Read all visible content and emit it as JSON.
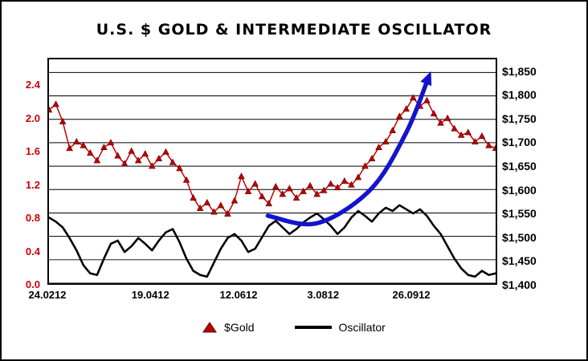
{
  "chart_data": {
    "type": "line",
    "title": "U.S. $ GOLD & INTERMEDIATE OSCILLATOR",
    "grid": "horizontal",
    "legend_position": "bottom",
    "x_ticks": [
      {
        "label": "24.0212",
        "pos": 0.0
      },
      {
        "label": "19.0412",
        "pos": 0.229
      },
      {
        "label": "12.0612",
        "pos": 0.425
      },
      {
        "label": "3.0812",
        "pos": 0.613
      },
      {
        "label": "26.0912",
        "pos": 0.809
      }
    ],
    "left_axis": {
      "color": "#cc0000",
      "tick_labels": [
        "2.4",
        "2.0",
        "1.6",
        "1.2",
        "0.8",
        "0.4",
        "0.0"
      ],
      "tick_values": [
        2.4,
        2.0,
        1.6,
        1.2,
        0.8,
        0.4,
        0.0
      ],
      "plot_max": 2.728
    },
    "right_axis": {
      "color": "#000000",
      "tick_labels": [
        "$1,850",
        "$1,800",
        "$1,750",
        "$1,700",
        "$1,650",
        "$1,600",
        "$1,550",
        "$1,500",
        "$1,450",
        "$1,400"
      ],
      "tick_values": [
        1850,
        1800,
        1750,
        1700,
        1650,
        1600,
        1550,
        1500,
        1450,
        1400
      ],
      "plot_range": [
        1400,
        1878
      ]
    },
    "series": [
      {
        "name": "$Gold",
        "axis": "right",
        "color": "#c00000",
        "marker": "triangle",
        "values": [
          1770,
          1782,
          1745,
          1688,
          1702,
          1694,
          1678,
          1662,
          1690,
          1700,
          1672,
          1655,
          1682,
          1662,
          1676,
          1650,
          1666,
          1680,
          1658,
          1645,
          1620,
          1582,
          1560,
          1572,
          1552,
          1566,
          1548,
          1576,
          1628,
          1596,
          1612,
          1585,
          1570,
          1606,
          1590,
          1602,
          1582,
          1596,
          1608,
          1590,
          1598,
          1612,
          1604,
          1618,
          1610,
          1626,
          1650,
          1666,
          1690,
          1702,
          1726,
          1756,
          1772,
          1796,
          1778,
          1790,
          1762,
          1742,
          1752,
          1730,
          1716,
          1722,
          1702,
          1714,
          1694,
          1688
        ]
      },
      {
        "name": "Oscillator",
        "axis": "left",
        "color": "#000000",
        "marker": "none",
        "values": [
          0.8,
          0.75,
          0.68,
          0.55,
          0.4,
          0.22,
          0.12,
          0.1,
          0.3,
          0.48,
          0.52,
          0.38,
          0.45,
          0.55,
          0.48,
          0.4,
          0.52,
          0.62,
          0.66,
          0.5,
          0.3,
          0.15,
          0.1,
          0.08,
          0.25,
          0.42,
          0.55,
          0.6,
          0.52,
          0.38,
          0.42,
          0.56,
          0.7,
          0.76,
          0.68,
          0.6,
          0.66,
          0.74,
          0.8,
          0.85,
          0.78,
          0.7,
          0.6,
          0.68,
          0.8,
          0.88,
          0.82,
          0.75,
          0.85,
          0.92,
          0.88,
          0.95,
          0.9,
          0.85,
          0.9,
          0.82,
          0.7,
          0.6,
          0.45,
          0.3,
          0.18,
          0.1,
          0.08,
          0.15,
          0.1,
          0.12
        ]
      }
    ],
    "annotations": [
      {
        "type": "arrow",
        "color": "#1414cc",
        "points": [
          [
            0.49,
            1544
          ],
          [
            0.6,
            1528
          ],
          [
            0.72,
            1600
          ],
          [
            0.8,
            1722
          ],
          [
            0.85,
            1840
          ]
        ]
      }
    ]
  }
}
